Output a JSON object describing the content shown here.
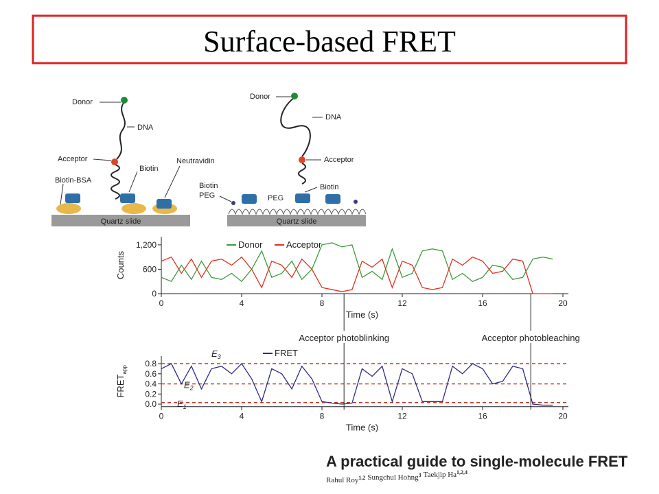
{
  "title": "Surface-based FRET",
  "diagram_left": {
    "donor": "Donor",
    "dna": "DNA",
    "acceptor": "Acceptor",
    "biotin": "Biotin",
    "neutravidin": "Neutravidin",
    "biotin_bsa": "Biotin-BSA",
    "slide": "Quartz slide"
  },
  "diagram_right": {
    "donor": "Donor",
    "dna": "DNA",
    "acceptor": "Acceptor",
    "biotin": "Biotin",
    "biotin_peg": "Biotin",
    "peg_left": "PEG",
    "peg": "PEG",
    "slide": "Quartz slide"
  },
  "chart_data": [
    {
      "type": "line",
      "xlabel": "Time (s)",
      "ylabel": "Counts",
      "x": [
        0,
        0.5,
        1,
        1.5,
        2,
        2.5,
        3,
        3.5,
        4,
        4.5,
        5,
        5.5,
        6,
        6.5,
        7,
        7.5,
        8,
        8.5,
        9,
        9.5,
        10,
        10.5,
        11,
        11.5,
        12,
        12.5,
        13,
        13.5,
        14,
        14.5,
        15,
        15.5,
        16,
        16.5,
        17,
        17.5,
        18,
        18.5,
        19,
        19.5
      ],
      "series": [
        {
          "name": "Donor",
          "color": "#3c9a3c",
          "values": [
            400,
            300,
            700,
            350,
            800,
            400,
            350,
            500,
            300,
            600,
            1050,
            400,
            500,
            800,
            350,
            600,
            1200,
            1250,
            1150,
            1200,
            400,
            550,
            350,
            1100,
            400,
            500,
            1050,
            1100,
            1050,
            350,
            500,
            300,
            400,
            700,
            650,
            350,
            400,
            850,
            900,
            850
          ]
        },
        {
          "name": "Acceptor",
          "color": "#e0301e",
          "values": [
            800,
            900,
            500,
            850,
            400,
            800,
            850,
            700,
            900,
            600,
            150,
            800,
            700,
            400,
            850,
            600,
            150,
            100,
            50,
            100,
            800,
            650,
            850,
            150,
            800,
            700,
            150,
            100,
            150,
            850,
            700,
            900,
            800,
            500,
            550,
            850,
            800,
            0,
            0,
            0
          ]
        }
      ],
      "xlim": [
        0,
        20
      ],
      "xticks": [
        0,
        4,
        8,
        12,
        16,
        20
      ],
      "ylim": [
        0,
        1400
      ],
      "yticks": [
        0,
        600,
        {
          "value": 1200,
          "label": "1,200"
        }
      ]
    },
    {
      "type": "line",
      "xlabel": "Time (s)",
      "ylabel": "FRET",
      "ylabel_sub": "app",
      "x": [
        0,
        0.5,
        1,
        1.5,
        2,
        2.5,
        3,
        3.5,
        4,
        4.5,
        5,
        5.5,
        6,
        6.5,
        7,
        7.5,
        8,
        8.5,
        9,
        9.5,
        10,
        10.5,
        11,
        11.5,
        12,
        12.5,
        13,
        13.5,
        14,
        14.5,
        15,
        15.5,
        16,
        16.5,
        17,
        17.5,
        18,
        18.5,
        19,
        19.5
      ],
      "series": [
        {
          "name": "FRET",
          "color": "#2b2b85",
          "values": [
            0.7,
            0.8,
            0.4,
            0.75,
            0.3,
            0.7,
            0.75,
            0.6,
            0.8,
            0.5,
            0.05,
            0.7,
            0.6,
            0.3,
            0.75,
            0.5,
            0.05,
            0.02,
            0.0,
            0.02,
            0.7,
            0.55,
            0.75,
            0.05,
            0.7,
            0.6,
            0.05,
            0.05,
            0.05,
            0.75,
            0.6,
            0.8,
            0.7,
            0.4,
            0.45,
            0.75,
            0.7,
            0.0,
            -0.02,
            -0.02
          ]
        }
      ],
      "levels": [
        {
          "label": "E",
          "sub": "1",
          "value": 0.03
        },
        {
          "label": "E",
          "sub": "2",
          "value": 0.4
        },
        {
          "label": "E",
          "sub": "3",
          "value": 0.8
        }
      ],
      "level_color": "#c0392b",
      "xlim": [
        0,
        20
      ],
      "xticks": [
        0,
        4,
        8,
        12,
        16,
        20
      ],
      "ylim": [
        -0.05,
        0.95
      ],
      "yticks": [
        {
          "value": 0,
          "label": "0.0"
        },
        0.2,
        0.4,
        0.6,
        0.8
      ]
    }
  ],
  "annotations": [
    {
      "text": "Acceptor photoblinking",
      "x": 9.1
    },
    {
      "text": "Acceptor photobleaching",
      "x": 18.4
    }
  ],
  "citation": {
    "title": "A practical guide to single-molecule FRET",
    "authors": [
      {
        "name": "Rahul Roy",
        "sup": "1,2"
      },
      {
        "name": "Sungchul Hohng",
        "sup": "3"
      },
      {
        "name": "Taekjip Ha",
        "sup": "1,2,4"
      }
    ]
  }
}
